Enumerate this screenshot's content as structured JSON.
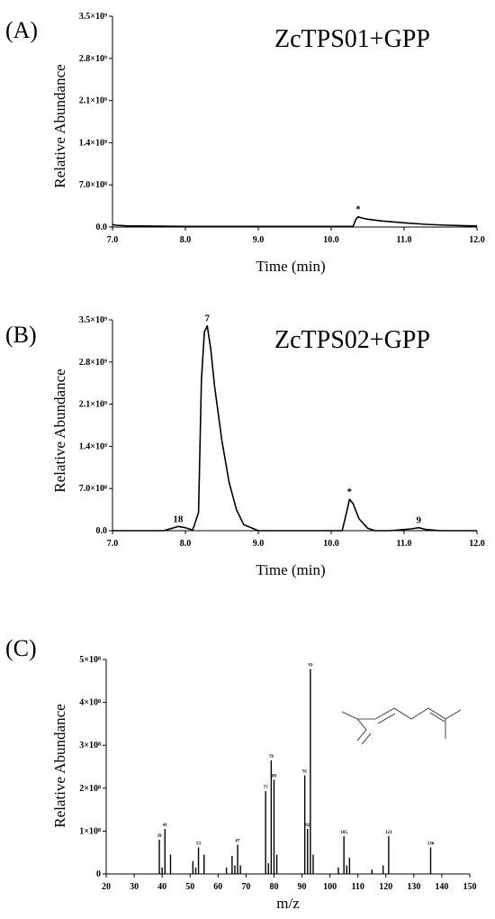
{
  "chart_data": [
    {
      "type": "line",
      "panel_label": "(A)",
      "title": "ZcTPS01+GPP",
      "xlabel": "Time (min)",
      "ylabel": "Relative Abundance",
      "xlim": [
        7.0,
        12.0
      ],
      "ylim": [
        0,
        3.5
      ],
      "x_ticks": [
        "7.0",
        "8.0",
        "9.0",
        "10.0",
        "11.0",
        "12.0"
      ],
      "y_ticks": [
        "0.0",
        "7.0×10⁸",
        "1.4×10⁹",
        "2.1×10⁹",
        "2.8×10⁹",
        "3.5×10⁹"
      ],
      "series": [
        {
          "x": [
            7.0,
            7.05,
            7.2,
            8.0,
            10.3,
            10.34,
            10.37,
            10.42,
            10.5,
            10.7,
            11.0,
            11.3,
            11.6,
            11.9,
            12.0
          ],
          "y": [
            0.04,
            0.03,
            0.02,
            0.01,
            0.01,
            0.13,
            0.17,
            0.15,
            0.13,
            0.1,
            0.07,
            0.045,
            0.03,
            0.02,
            0.02
          ]
        }
      ],
      "annotations": [
        {
          "x": 10.37,
          "y": 0.17,
          "text": "*"
        }
      ]
    },
    {
      "type": "line",
      "panel_label": "(B)",
      "title": "ZcTPS02+GPP",
      "xlabel": "Time (min)",
      "ylabel": "Relative Abundance",
      "xlim": [
        7.0,
        12.0
      ],
      "ylim": [
        0,
        3.5
      ],
      "x_ticks": [
        "7.0",
        "8.0",
        "9.0",
        "10.0",
        "11.0",
        "12.0"
      ],
      "y_ticks": [
        "0.0",
        "7.0×10⁸",
        "1.4×10⁹",
        "2.1×10⁹",
        "2.8×10⁹",
        "3.5×10⁹"
      ],
      "series": [
        {
          "x": [
            7.0,
            7.7,
            7.82,
            7.9,
            8.0,
            8.1,
            8.18,
            8.22,
            8.26,
            8.3,
            8.35,
            8.4,
            8.5,
            8.6,
            8.7,
            8.8,
            9.0,
            10.15,
            10.22,
            10.25,
            10.3,
            10.38,
            10.5,
            10.6,
            10.8,
            11.1,
            11.2,
            11.3,
            11.5,
            12.0
          ],
          "y": [
            0.0,
            0.0,
            0.04,
            0.07,
            0.05,
            0.01,
            0.3,
            2.5,
            3.3,
            3.4,
            3.0,
            2.4,
            1.5,
            0.8,
            0.35,
            0.1,
            0.0,
            0.0,
            0.35,
            0.52,
            0.45,
            0.2,
            0.04,
            0.0,
            0.0,
            0.03,
            0.05,
            0.02,
            0.0,
            0.0
          ]
        }
      ],
      "annotations": [
        {
          "x": 7.9,
          "y": 0.07,
          "text": "18"
        },
        {
          "x": 8.3,
          "y": 3.4,
          "text": "7"
        },
        {
          "x": 10.25,
          "y": 0.52,
          "text": "*"
        },
        {
          "x": 11.2,
          "y": 0.05,
          "text": "9"
        }
      ]
    },
    {
      "type": "bar",
      "panel_label": "(C)",
      "xlabel": "m/z",
      "ylabel": "Relative Abundance",
      "xlim": [
        20,
        150
      ],
      "ylim": [
        0,
        5
      ],
      "x_ticks": [
        "20",
        "30",
        "40",
        "50",
        "60",
        "70",
        "80",
        "90",
        "100",
        "110",
        "120",
        "130",
        "140",
        "150"
      ],
      "y_ticks": [
        "0",
        "1×10⁸",
        "2×10⁸",
        "3×10⁸",
        "4×10⁸",
        "5×10⁸"
      ],
      "x": [
        39,
        40,
        41,
        43,
        51,
        52,
        53,
        55,
        63,
        65,
        66,
        67,
        68,
        77,
        78,
        79,
        80,
        81,
        91,
        92,
        93,
        94,
        103,
        105,
        106,
        107,
        115,
        119,
        121,
        136
      ],
      "values": [
        0.8,
        0.15,
        1.05,
        0.45,
        0.3,
        0.15,
        0.62,
        0.45,
        0.15,
        0.42,
        0.2,
        0.68,
        0.2,
        1.93,
        0.25,
        2.65,
        2.2,
        0.45,
        2.3,
        1.05,
        4.78,
        0.45,
        0.15,
        0.88,
        0.2,
        0.38,
        0.1,
        0.2,
        0.88,
        0.62
      ],
      "peak_labels": [
        {
          "x": 39,
          "text": "39"
        },
        {
          "x": 41,
          "text": "41"
        },
        {
          "x": 53,
          "text": "53"
        },
        {
          "x": 67,
          "text": "67"
        },
        {
          "x": 77,
          "text": "77"
        },
        {
          "x": 79,
          "text": "79"
        },
        {
          "x": 80,
          "text": "80"
        },
        {
          "x": 91,
          "text": "91"
        },
        {
          "x": 92,
          "text": "92"
        },
        {
          "x": 93,
          "text": "93"
        },
        {
          "x": 105,
          "text": "105"
        },
        {
          "x": 121,
          "text": "121"
        },
        {
          "x": 136,
          "text": "136"
        }
      ]
    }
  ]
}
